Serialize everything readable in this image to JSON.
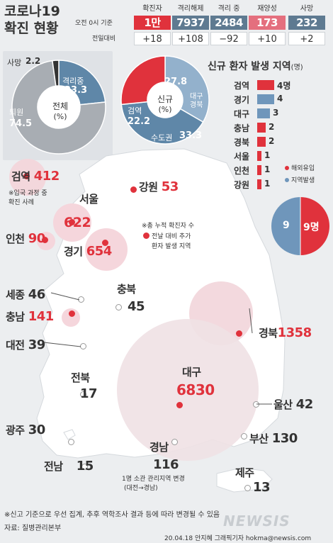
{
  "title": {
    "line1": "코로나19",
    "line2": "확진 현황"
  },
  "header": {
    "basis": "오전 0시 기준",
    "vs_prev": "전일대비",
    "columns": [
      {
        "label": "확진자",
        "value": "1만653",
        "delta": "+18",
        "color": "#e0323c"
      },
      {
        "label": "격리해제",
        "value": "7937",
        "delta": "+108",
        "color": "#5e7a91"
      },
      {
        "label": "격리 중",
        "value": "2484",
        "delta": "−92",
        "color": "#5e7a91"
      },
      {
        "label": "재양성",
        "value": "173",
        "delta": "+10",
        "color": "#e46f7e"
      },
      {
        "label": "사망",
        "value": "232",
        "delta": "+2",
        "color": "#5e7a91"
      }
    ]
  },
  "donut_total": {
    "center_label": "전체",
    "center_unit": "(%)",
    "segments": [
      {
        "label": "격리중",
        "value": "23.3",
        "color": "#5f87a8"
      },
      {
        "label": "퇴원",
        "value": "74.5",
        "color": "#a8adb3"
      },
      {
        "label": "사망",
        "value": "2.2",
        "color": "#333333"
      }
    ]
  },
  "donut_new": {
    "center_label": "신규",
    "center_unit": "(%)",
    "segments": [
      {
        "label": "대구경북",
        "value": "27.8",
        "color": "#93b1cc"
      },
      {
        "label": "수도권",
        "value": "33.3",
        "color": "#5f87a8"
      },
      {
        "label": "검역",
        "value": "22.2",
        "color": "#e0323c"
      }
    ]
  },
  "new_region_title": "신규 환자 발생 지역",
  "new_region_unit": "(명)",
  "new_regions": [
    {
      "name": "검역",
      "value": "4명",
      "count": 4,
      "type": "overseas"
    },
    {
      "name": "경기",
      "value": "4",
      "count": 4,
      "type": "local"
    },
    {
      "name": "대구",
      "value": "3",
      "count": 3,
      "type": "local"
    },
    {
      "name": "충남",
      "value": "2",
      "count": 2,
      "type": "overseas"
    },
    {
      "name": "경북",
      "value": "2",
      "count": 2,
      "type": "overseas"
    },
    {
      "name": "서울",
      "value": "1",
      "count": 1,
      "type": "overseas"
    },
    {
      "name": "인천",
      "value": "1",
      "count": 1,
      "type": "overseas"
    },
    {
      "name": "강원",
      "value": "1",
      "count": 1,
      "type": "overseas"
    }
  ],
  "legend": {
    "overseas": "해외유입",
    "local": "지역발생",
    "overseas_color": "#e0323c",
    "local_color": "#6f96bb"
  },
  "pie_small": {
    "local": "9",
    "overseas": "9명"
  },
  "map": {
    "regions": {
      "quarantine": {
        "name": "검역",
        "value": "412"
      },
      "gangwon": {
        "name": "강원",
        "value": "53"
      },
      "seoul": {
        "name": "서울",
        "value": "622"
      },
      "incheon": {
        "name": "인천",
        "value": "90"
      },
      "gyeonggi": {
        "name": "경기",
        "value": "654"
      },
      "chungbuk": {
        "name": "충북",
        "value": "45"
      },
      "sejong": {
        "name": "세종",
        "value": "46"
      },
      "chungnam": {
        "name": "충남",
        "value": "141"
      },
      "daejeon": {
        "name": "대전",
        "value": "39"
      },
      "gyeongbuk": {
        "name": "경북",
        "value": "1358"
      },
      "jeonbuk": {
        "name": "전북",
        "value": "17"
      },
      "daegu": {
        "name": "대구",
        "value": "6830"
      },
      "ulsan": {
        "name": "울산",
        "value": "42"
      },
      "gwangju": {
        "name": "광주",
        "value": "30"
      },
      "busan": {
        "name": "부산",
        "value": "130"
      },
      "jeonnam": {
        "name": "전남",
        "value": "15"
      },
      "gyeongnam": {
        "name": "경남",
        "value": "116"
      },
      "jeju": {
        "name": "제주",
        "value": "13"
      }
    },
    "note_quarantine_1": "※입국 과정 중",
    "note_quarantine_2": "확진 사례",
    "note_total_1": "※총 누적 확진자 수",
    "note_total_2": "전날 대비 추가",
    "note_total_3": "환자 발생 지역",
    "note_gyeongnam_1": "1명 소관 관리지역 변경",
    "note_gyeongnam_2": "(대전→경남)"
  },
  "footer": {
    "note": "※신고 기준으로 우선 집계, 추후 역학조사 결과 등에 따라 변경될 수 있음",
    "source": "자료: 질병관리본부",
    "credit": "20.04.18 안지혜 그래픽기자 hokma@newsis.com",
    "watermark": "NEWSIS"
  }
}
